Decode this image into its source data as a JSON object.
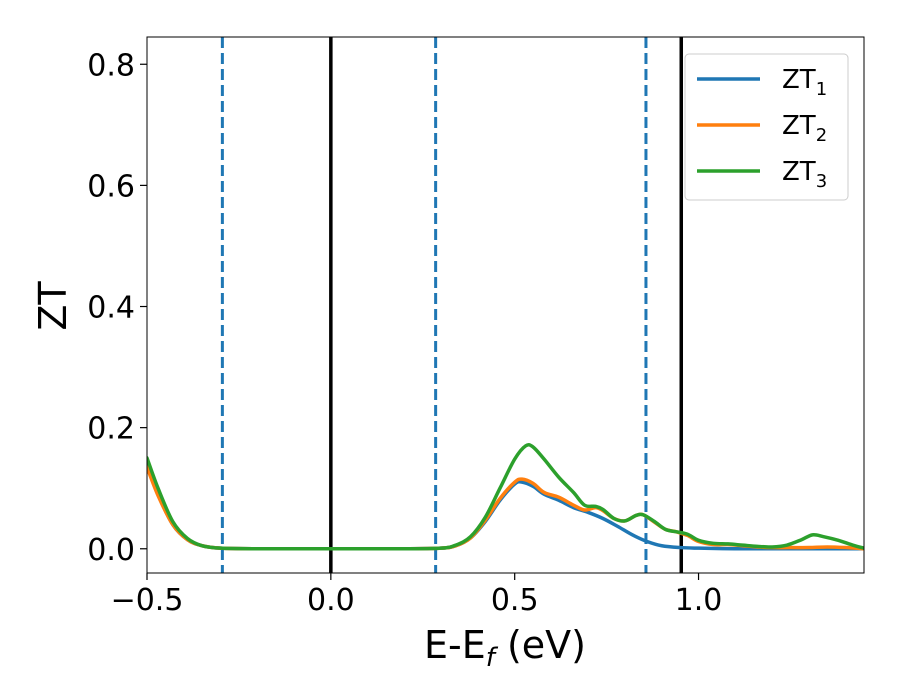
{
  "chart_data": {
    "type": "line",
    "title": "",
    "xlabel": {
      "main": "E-E",
      "sub": "f",
      "tail": " (eV)"
    },
    "ylabel": "ZT",
    "xlim": [
      -0.5,
      1.45
    ],
    "ylim": [
      -0.04,
      0.845
    ],
    "x_ticks": [
      {
        "value": -0.5,
        "label": "−0.5"
      },
      {
        "value": 0.0,
        "label": "0.0"
      },
      {
        "value": 0.5,
        "label": "0.5"
      },
      {
        "value": 1.0,
        "label": "1.0"
      }
    ],
    "y_ticks": [
      {
        "value": 0.0,
        "label": "0.0"
      },
      {
        "value": 0.2,
        "label": "0.2"
      },
      {
        "value": 0.4,
        "label": "0.4"
      },
      {
        "value": 0.6,
        "label": "0.6"
      },
      {
        "value": 0.8,
        "label": "0.8"
      }
    ],
    "grid": false,
    "legend_placement": "upper right",
    "vertical_lines": [
      {
        "x": -0.295,
        "style": "dashed",
        "color": "#1f77b4"
      },
      {
        "x": 0.0,
        "style": "solid",
        "color": "#000000"
      },
      {
        "x": 0.285,
        "style": "dashed",
        "color": "#1f77b4"
      },
      {
        "x": 0.857,
        "style": "dashed",
        "color": "#1f77b4"
      },
      {
        "x": 0.953,
        "style": "solid",
        "color": "#000000"
      }
    ],
    "series": [
      {
        "name": {
          "main": "ZT",
          "sub": "1"
        },
        "color": "#1f77b4",
        "points": [
          [
            -0.5,
            0.14
          ],
          [
            -0.47,
            0.09
          ],
          [
            -0.43,
            0.04
          ],
          [
            -0.39,
            0.015
          ],
          [
            -0.35,
            0.005
          ],
          [
            -0.3,
            0.001
          ],
          [
            -0.2,
            0.0
          ],
          [
            0.0,
            0.0
          ],
          [
            0.2,
            0.0
          ],
          [
            0.3,
            0.001
          ],
          [
            0.34,
            0.005
          ],
          [
            0.38,
            0.018
          ],
          [
            0.42,
            0.045
          ],
          [
            0.46,
            0.08
          ],
          [
            0.5,
            0.107
          ],
          [
            0.52,
            0.11
          ],
          [
            0.55,
            0.103
          ],
          [
            0.58,
            0.09
          ],
          [
            0.62,
            0.08
          ],
          [
            0.66,
            0.068
          ],
          [
            0.7,
            0.06
          ],
          [
            0.74,
            0.05
          ],
          [
            0.78,
            0.037
          ],
          [
            0.82,
            0.023
          ],
          [
            0.86,
            0.012
          ],
          [
            0.9,
            0.005
          ],
          [
            0.95,
            0.002
          ],
          [
            1.0,
            0.001
          ],
          [
            1.1,
            0.0
          ],
          [
            1.2,
            0.0
          ],
          [
            1.3,
            0.0
          ],
          [
            1.45,
            0.0
          ]
        ]
      },
      {
        "name": {
          "main": "ZT",
          "sub": "2"
        },
        "color": "#ff7f0e",
        "points": [
          [
            -0.5,
            0.135
          ],
          [
            -0.47,
            0.088
          ],
          [
            -0.43,
            0.04
          ],
          [
            -0.39,
            0.015
          ],
          [
            -0.35,
            0.005
          ],
          [
            -0.3,
            0.001
          ],
          [
            -0.2,
            0.0
          ],
          [
            0.0,
            0.0
          ],
          [
            0.2,
            0.0
          ],
          [
            0.3,
            0.001
          ],
          [
            0.34,
            0.005
          ],
          [
            0.38,
            0.018
          ],
          [
            0.42,
            0.047
          ],
          [
            0.46,
            0.083
          ],
          [
            0.5,
            0.11
          ],
          [
            0.52,
            0.115
          ],
          [
            0.55,
            0.108
          ],
          [
            0.58,
            0.093
          ],
          [
            0.62,
            0.085
          ],
          [
            0.66,
            0.072
          ],
          [
            0.69,
            0.064
          ],
          [
            0.72,
            0.068
          ],
          [
            0.74,
            0.063
          ],
          [
            0.77,
            0.05
          ],
          [
            0.8,
            0.046
          ],
          [
            0.83,
            0.055
          ],
          [
            0.85,
            0.056
          ],
          [
            0.88,
            0.044
          ],
          [
            0.91,
            0.032
          ],
          [
            0.94,
            0.028
          ],
          [
            0.97,
            0.022
          ],
          [
            1.0,
            0.012
          ],
          [
            1.04,
            0.007
          ],
          [
            1.08,
            0.007
          ],
          [
            1.12,
            0.005
          ],
          [
            1.16,
            0.003
          ],
          [
            1.2,
            0.002
          ],
          [
            1.25,
            0.002
          ],
          [
            1.3,
            0.002
          ],
          [
            1.35,
            0.003
          ],
          [
            1.4,
            0.002
          ],
          [
            1.45,
            0.0
          ]
        ]
      },
      {
        "name": {
          "main": "ZT",
          "sub": "3"
        },
        "color": "#2ca02c",
        "points": [
          [
            -0.5,
            0.15
          ],
          [
            -0.47,
            0.1
          ],
          [
            -0.43,
            0.045
          ],
          [
            -0.39,
            0.017
          ],
          [
            -0.35,
            0.005
          ],
          [
            -0.3,
            0.001
          ],
          [
            -0.2,
            0.0
          ],
          [
            0.0,
            0.0
          ],
          [
            0.2,
            0.0
          ],
          [
            0.3,
            0.001
          ],
          [
            0.34,
            0.006
          ],
          [
            0.38,
            0.02
          ],
          [
            0.42,
            0.052
          ],
          [
            0.46,
            0.1
          ],
          [
            0.5,
            0.148
          ],
          [
            0.53,
            0.17
          ],
          [
            0.55,
            0.168
          ],
          [
            0.58,
            0.148
          ],
          [
            0.62,
            0.118
          ],
          [
            0.66,
            0.093
          ],
          [
            0.69,
            0.072
          ],
          [
            0.72,
            0.07
          ],
          [
            0.74,
            0.065
          ],
          [
            0.77,
            0.05
          ],
          [
            0.8,
            0.046
          ],
          [
            0.83,
            0.055
          ],
          [
            0.85,
            0.056
          ],
          [
            0.88,
            0.045
          ],
          [
            0.91,
            0.032
          ],
          [
            0.94,
            0.028
          ],
          [
            0.97,
            0.024
          ],
          [
            1.0,
            0.014
          ],
          [
            1.04,
            0.009
          ],
          [
            1.08,
            0.008
          ],
          [
            1.12,
            0.006
          ],
          [
            1.16,
            0.004
          ],
          [
            1.2,
            0.003
          ],
          [
            1.24,
            0.006
          ],
          [
            1.28,
            0.015
          ],
          [
            1.31,
            0.023
          ],
          [
            1.34,
            0.02
          ],
          [
            1.38,
            0.014
          ],
          [
            1.42,
            0.006
          ],
          [
            1.45,
            0.001
          ]
        ]
      }
    ]
  }
}
